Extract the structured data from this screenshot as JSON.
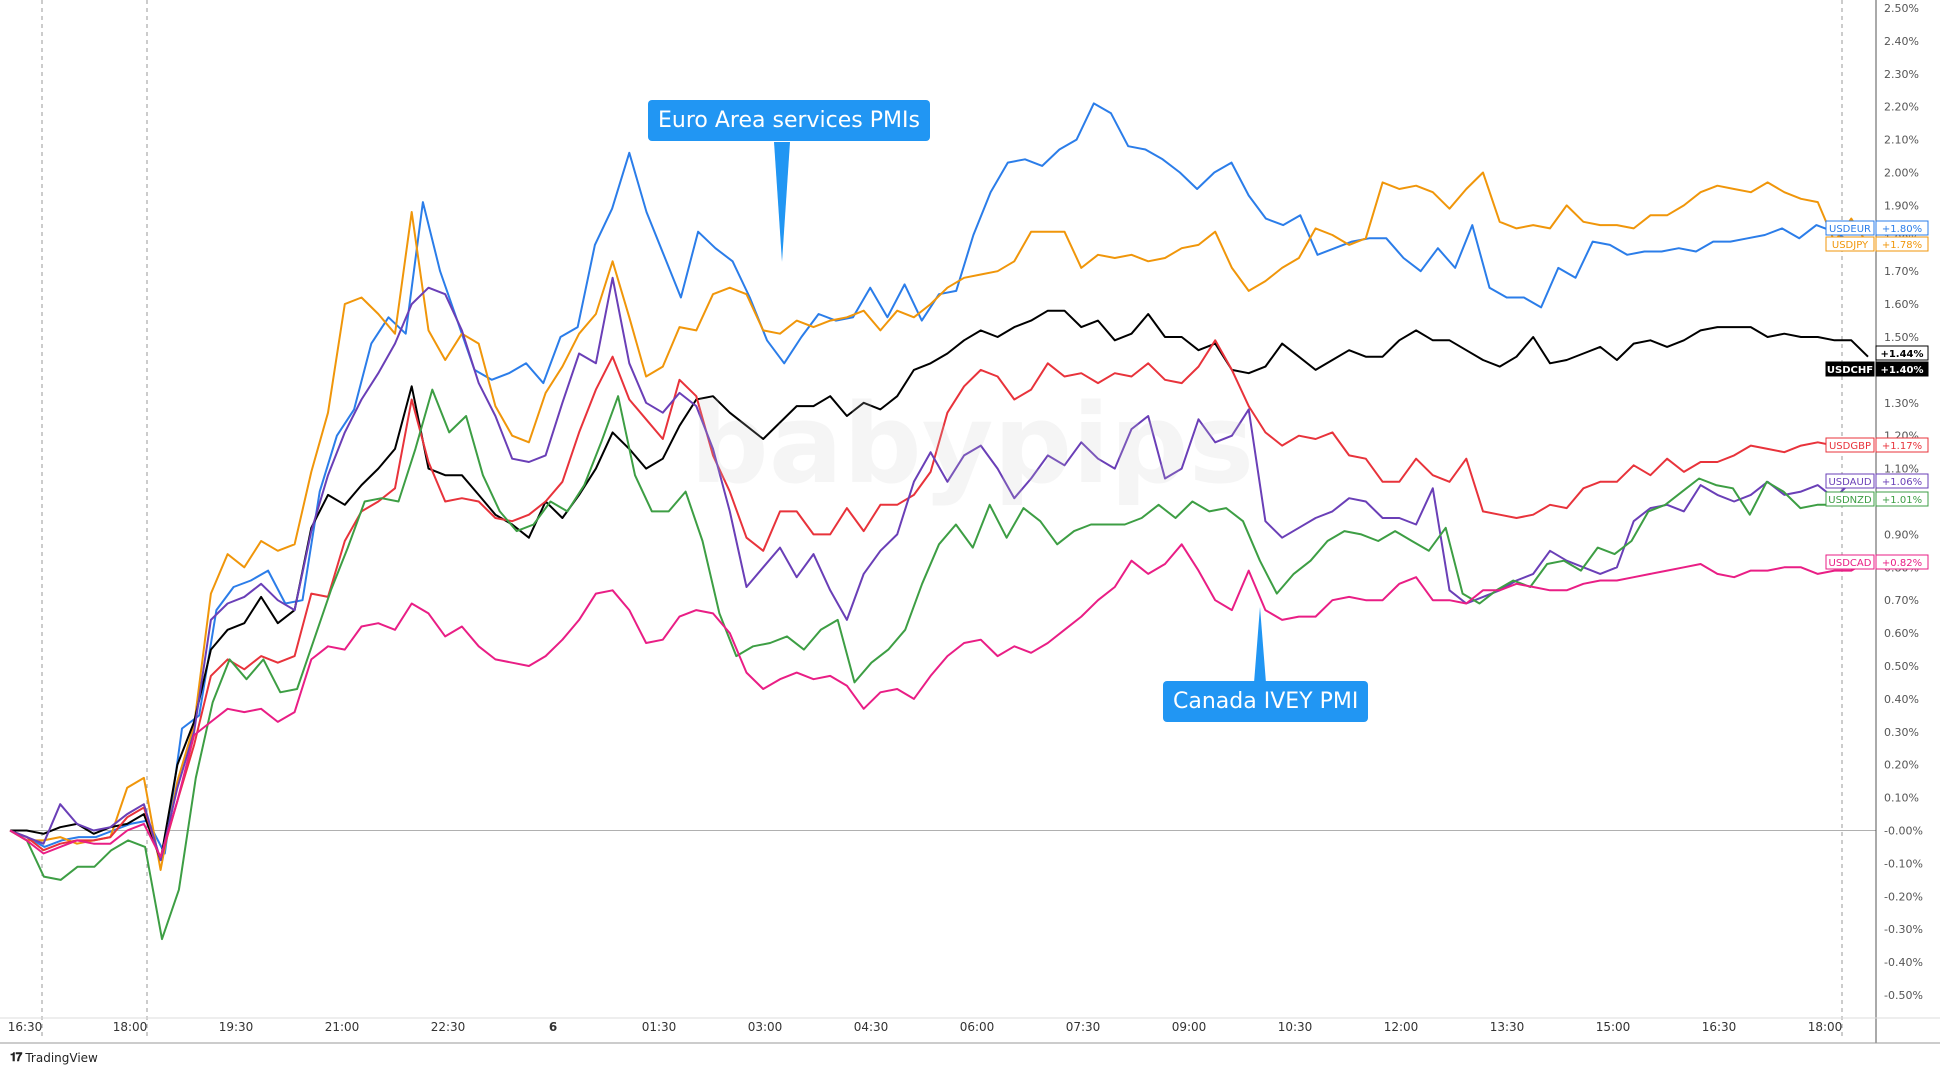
{
  "chart_data": {
    "type": "line",
    "ylim": [
      -0.55,
      2.5
    ],
    "y_ticks": [
      "2.50%",
      "2.40%",
      "2.30%",
      "2.20%",
      "2.10%",
      "2.00%",
      "1.90%",
      "1.80%",
      "1.70%",
      "1.60%",
      "1.50%",
      "1.40%",
      "1.30%",
      "1.20%",
      "1.10%",
      "1.00%",
      "0.90%",
      "0.80%",
      "0.70%",
      "0.60%",
      "0.50%",
      "0.40%",
      "0.30%",
      "0.20%",
      "0.10%",
      "-0.00%",
      "-0.10%",
      "-0.20%",
      "-0.30%",
      "-0.40%",
      "-0.50%"
    ],
    "x_ticks": [
      "16:30",
      "18:00",
      "19:30",
      "21:00",
      "22:30",
      "6",
      "01:30",
      "03:00",
      "04:30",
      "06:00",
      "07:30",
      "09:00",
      "10:30",
      "12:00",
      "13:30",
      "15:00",
      "16:30",
      "18:00"
    ],
    "vertical_lines_at_tick": [
      0,
      1,
      17
    ],
    "series": [
      {
        "name": "USDEUR",
        "label": "+1.80%",
        "color": "#2b7de9",
        "values": [
          0,
          -0.02,
          -0.05,
          -0.03,
          -0.02,
          -0.02,
          0,
          0.02,
          0.03,
          -0.07,
          0.31,
          0.35,
          0.67,
          0.74,
          0.76,
          0.79,
          0.69,
          0.7,
          1.03,
          1.2,
          1.28,
          1.48,
          1.56,
          1.51,
          1.91,
          1.7,
          1.55,
          1.4,
          1.37,
          1.39,
          1.42,
          1.36,
          1.5,
          1.53,
          1.78,
          1.89,
          2.06,
          1.88,
          1.75,
          1.62,
          1.82,
          1.77,
          1.73,
          1.62,
          1.49,
          1.42,
          1.5,
          1.57,
          1.55,
          1.56,
          1.65,
          1.56,
          1.66,
          1.55,
          1.63,
          1.64,
          1.81,
          1.94,
          2.03,
          2.04,
          2.02,
          2.07,
          2.1,
          2.21,
          2.18,
          2.08,
          2.07,
          2.04,
          2.0,
          1.95,
          2.0,
          2.03,
          1.93,
          1.86,
          1.84,
          1.87,
          1.75,
          1.77,
          1.79,
          1.8,
          1.8,
          1.74,
          1.7,
          1.77,
          1.71,
          1.84,
          1.65,
          1.62,
          1.62,
          1.59,
          1.71,
          1.68,
          1.79,
          1.78,
          1.75,
          1.76,
          1.76,
          1.77,
          1.76,
          1.79,
          1.79,
          1.8,
          1.81,
          1.83,
          1.8,
          1.84,
          1.82,
          1.79,
          1.8
        ]
      },
      {
        "name": "USDJPY",
        "label": "+1.78%",
        "color": "#f0960a",
        "values": [
          0,
          -0.03,
          -0.03,
          -0.02,
          -0.04,
          -0.03,
          -0.02,
          0.13,
          0.16,
          -0.12,
          0.15,
          0.32,
          0.72,
          0.84,
          0.8,
          0.88,
          0.85,
          0.87,
          1.09,
          1.27,
          1.6,
          1.62,
          1.57,
          1.51,
          1.88,
          1.52,
          1.43,
          1.51,
          1.48,
          1.29,
          1.2,
          1.18,
          1.33,
          1.41,
          1.51,
          1.57,
          1.73,
          1.56,
          1.38,
          1.41,
          1.53,
          1.52,
          1.63,
          1.65,
          1.63,
          1.52,
          1.51,
          1.55,
          1.53,
          1.55,
          1.56,
          1.58,
          1.52,
          1.58,
          1.56,
          1.6,
          1.65,
          1.68,
          1.69,
          1.7,
          1.73,
          1.82,
          1.82,
          1.82,
          1.71,
          1.75,
          1.74,
          1.75,
          1.73,
          1.74,
          1.77,
          1.78,
          1.82,
          1.71,
          1.64,
          1.67,
          1.71,
          1.74,
          1.83,
          1.81,
          1.78,
          1.8,
          1.97,
          1.95,
          1.96,
          1.94,
          1.89,
          1.95,
          2.0,
          1.85,
          1.83,
          1.84,
          1.83,
          1.9,
          1.85,
          1.84,
          1.84,
          1.83,
          1.87,
          1.87,
          1.9,
          1.94,
          1.96,
          1.95,
          1.94,
          1.97,
          1.94,
          1.92,
          1.91,
          1.79,
          1.86,
          1.78
        ]
      },
      {
        "name": "USDCHF",
        "label": "+1.44%",
        "color": "#000000",
        "values": [
          0,
          0,
          -0.01,
          0.01,
          0.02,
          -0.01,
          0.01,
          0.02,
          0.05,
          -0.09,
          0.2,
          0.33,
          0.55,
          0.61,
          0.63,
          0.71,
          0.63,
          0.67,
          0.92,
          1.02,
          0.99,
          1.05,
          1.1,
          1.16,
          1.35,
          1.1,
          1.08,
          1.08,
          1.02,
          0.96,
          0.93,
          0.89,
          1.0,
          0.95,
          1.02,
          1.1,
          1.21,
          1.16,
          1.1,
          1.13,
          1.23,
          1.31,
          1.32,
          1.27,
          1.23,
          1.19,
          1.24,
          1.29,
          1.29,
          1.32,
          1.26,
          1.3,
          1.28,
          1.32,
          1.4,
          1.42,
          1.45,
          1.49,
          1.52,
          1.5,
          1.53,
          1.55,
          1.58,
          1.58,
          1.53,
          1.55,
          1.49,
          1.51,
          1.57,
          1.5,
          1.5,
          1.46,
          1.48,
          1.4,
          1.39,
          1.41,
          1.48,
          1.44,
          1.4,
          1.43,
          1.46,
          1.44,
          1.44,
          1.49,
          1.52,
          1.49,
          1.49,
          1.46,
          1.43,
          1.41,
          1.44,
          1.5,
          1.42,
          1.43,
          1.45,
          1.47,
          1.43,
          1.48,
          1.49,
          1.47,
          1.49,
          1.52,
          1.53,
          1.53,
          1.53,
          1.5,
          1.51,
          1.5,
          1.5,
          1.49,
          1.49,
          1.44
        ]
      },
      {
        "name": "USDGBP",
        "label": "+1.17%",
        "color": "#e8333b",
        "values": [
          0,
          -0.02,
          -0.06,
          -0.04,
          -0.03,
          -0.03,
          -0.02,
          0.04,
          0.07,
          -0.09,
          0.09,
          0.26,
          0.47,
          0.52,
          0.49,
          0.53,
          0.51,
          0.53,
          0.72,
          0.71,
          0.88,
          0.97,
          1.0,
          1.04,
          1.31,
          1.12,
          1.0,
          1.01,
          1.0,
          0.95,
          0.94,
          0.96,
          1.0,
          1.06,
          1.21,
          1.34,
          1.44,
          1.31,
          1.25,
          1.19,
          1.37,
          1.32,
          1.14,
          1.03,
          0.89,
          0.85,
          0.97,
          0.97,
          0.9,
          0.9,
          0.98,
          0.91,
          0.99,
          0.99,
          1.02,
          1.09,
          1.27,
          1.35,
          1.4,
          1.38,
          1.31,
          1.34,
          1.42,
          1.38,
          1.39,
          1.36,
          1.39,
          1.38,
          1.42,
          1.37,
          1.36,
          1.41,
          1.49,
          1.4,
          1.29,
          1.21,
          1.17,
          1.2,
          1.19,
          1.21,
          1.14,
          1.13,
          1.06,
          1.06,
          1.13,
          1.08,
          1.06,
          1.13,
          0.97,
          0.96,
          0.95,
          0.96,
          0.99,
          0.98,
          1.04,
          1.06,
          1.06,
          1.11,
          1.08,
          1.13,
          1.09,
          1.12,
          1.12,
          1.14,
          1.17,
          1.16,
          1.15,
          1.17,
          1.18,
          1.17,
          1.17,
          1.17
        ]
      },
      {
        "name": "USDAUD",
        "label": "+1.06%",
        "color": "#6a3fb7",
        "values": [
          0,
          -0.02,
          -0.04,
          0.08,
          0.02,
          0.0,
          0.01,
          0.05,
          0.08,
          -0.09,
          0.13,
          0.3,
          0.64,
          0.69,
          0.71,
          0.75,
          0.7,
          0.67,
          0.91,
          1.08,
          1.21,
          1.31,
          1.39,
          1.48,
          1.6,
          1.65,
          1.63,
          1.52,
          1.36,
          1.26,
          1.13,
          1.12,
          1.14,
          1.3,
          1.45,
          1.42,
          1.68,
          1.42,
          1.3,
          1.27,
          1.33,
          1.29,
          1.16,
          0.97,
          0.74,
          0.8,
          0.86,
          0.77,
          0.84,
          0.73,
          0.64,
          0.78,
          0.85,
          0.9,
          1.06,
          1.15,
          1.06,
          1.14,
          1.17,
          1.1,
          1.01,
          1.07,
          1.14,
          1.11,
          1.18,
          1.13,
          1.1,
          1.22,
          1.26,
          1.07,
          1.1,
          1.25,
          1.18,
          1.2,
          1.28,
          0.94,
          0.89,
          0.92,
          0.95,
          0.97,
          1.01,
          1.0,
          0.95,
          0.95,
          0.93,
          1.04,
          0.73,
          0.69,
          0.71,
          0.73,
          0.76,
          0.78,
          0.85,
          0.82,
          0.8,
          0.78,
          0.8,
          0.94,
          0.98,
          0.99,
          0.97,
          1.05,
          1.02,
          1.0,
          1.02,
          1.06,
          1.02,
          1.03,
          1.05,
          1.01,
          1.06,
          1.06
        ]
      },
      {
        "name": "USDNZD",
        "label": "+1.01%",
        "color": "#3d9e44",
        "values": [
          0,
          -0.03,
          -0.14,
          -0.15,
          -0.11,
          -0.11,
          -0.06,
          -0.03,
          -0.05,
          -0.33,
          -0.18,
          0.16,
          0.39,
          0.52,
          0.46,
          0.52,
          0.42,
          0.43,
          0.58,
          0.73,
          0.86,
          1.0,
          1.01,
          1.0,
          1.16,
          1.34,
          1.21,
          1.26,
          1.08,
          0.97,
          0.91,
          0.93,
          1.0,
          0.97,
          1.05,
          1.18,
          1.32,
          1.08,
          0.97,
          0.97,
          1.03,
          0.88,
          0.66,
          0.53,
          0.56,
          0.57,
          0.59,
          0.55,
          0.61,
          0.64,
          0.45,
          0.51,
          0.55,
          0.61,
          0.75,
          0.87,
          0.93,
          0.86,
          0.99,
          0.89,
          0.98,
          0.94,
          0.87,
          0.91,
          0.93,
          0.93,
          0.93,
          0.95,
          0.99,
          0.95,
          1.0,
          0.97,
          0.98,
          0.94,
          0.82,
          0.72,
          0.78,
          0.82,
          0.88,
          0.91,
          0.9,
          0.88,
          0.91,
          0.88,
          0.85,
          0.92,
          0.72,
          0.69,
          0.73,
          0.76,
          0.74,
          0.81,
          0.82,
          0.79,
          0.86,
          0.84,
          0.88,
          0.97,
          0.99,
          1.03,
          1.07,
          1.05,
          1.04,
          0.96,
          1.06,
          1.03,
          0.98,
          0.99,
          0.99,
          1.01,
          1.01
        ]
      },
      {
        "name": "USDCAD",
        "label": "+0.82%",
        "color": "#e91e85",
        "values": [
          0,
          -0.03,
          -0.07,
          -0.05,
          -0.03,
          -0.04,
          -0.04,
          0.0,
          0.02,
          -0.08,
          0.09,
          0.29,
          0.33,
          0.37,
          0.36,
          0.37,
          0.33,
          0.36,
          0.52,
          0.56,
          0.55,
          0.62,
          0.63,
          0.61,
          0.69,
          0.66,
          0.59,
          0.62,
          0.56,
          0.52,
          0.51,
          0.5,
          0.53,
          0.58,
          0.64,
          0.72,
          0.73,
          0.67,
          0.57,
          0.58,
          0.65,
          0.67,
          0.66,
          0.6,
          0.48,
          0.43,
          0.46,
          0.48,
          0.46,
          0.47,
          0.44,
          0.37,
          0.42,
          0.43,
          0.4,
          0.47,
          0.53,
          0.57,
          0.58,
          0.53,
          0.56,
          0.54,
          0.57,
          0.61,
          0.65,
          0.7,
          0.74,
          0.82,
          0.78,
          0.81,
          0.87,
          0.79,
          0.7,
          0.67,
          0.79,
          0.67,
          0.64,
          0.65,
          0.65,
          0.7,
          0.71,
          0.7,
          0.7,
          0.75,
          0.77,
          0.7,
          0.7,
          0.69,
          0.73,
          0.73,
          0.75,
          0.74,
          0.73,
          0.73,
          0.75,
          0.76,
          0.76,
          0.77,
          0.78,
          0.79,
          0.8,
          0.81,
          0.78,
          0.77,
          0.79,
          0.79,
          0.8,
          0.8,
          0.78,
          0.79,
          0.79,
          0.82
        ]
      }
    ],
    "price_tags": [
      {
        "series": "USDEUR",
        "text": "USDEUR",
        "value": "+1.80%",
        "style": "outline"
      },
      {
        "series": "USDJPY",
        "text": "USDJPY",
        "value": "+1.78%",
        "style": "outline"
      },
      {
        "series": "USDCHF",
        "text": "",
        "value": "+1.44%",
        "style": "outline"
      },
      {
        "series": "USDCHF",
        "text": "USDCHF",
        "value": "+1.40%",
        "style": "filled"
      },
      {
        "series": "USDGBP",
        "text": "USDGBP",
        "value": "+1.17%",
        "style": "outline"
      },
      {
        "series": "USDAUD",
        "text": "USDAUD",
        "value": "+1.06%",
        "style": "outline"
      },
      {
        "series": "USDNZD",
        "text": "USDNZD",
        "value": "+1.01%",
        "style": "outline"
      },
      {
        "series": "USDCAD",
        "text": "USDCAD",
        "value": "+0.82%",
        "style": "outline"
      }
    ],
    "annotations": [
      {
        "text": "Euro Area services PMIs"
      },
      {
        "text": "Canada IVEY PMI"
      }
    ],
    "grid": false
  },
  "brand": {
    "name": "TradingView",
    "watermark": "babypips"
  }
}
